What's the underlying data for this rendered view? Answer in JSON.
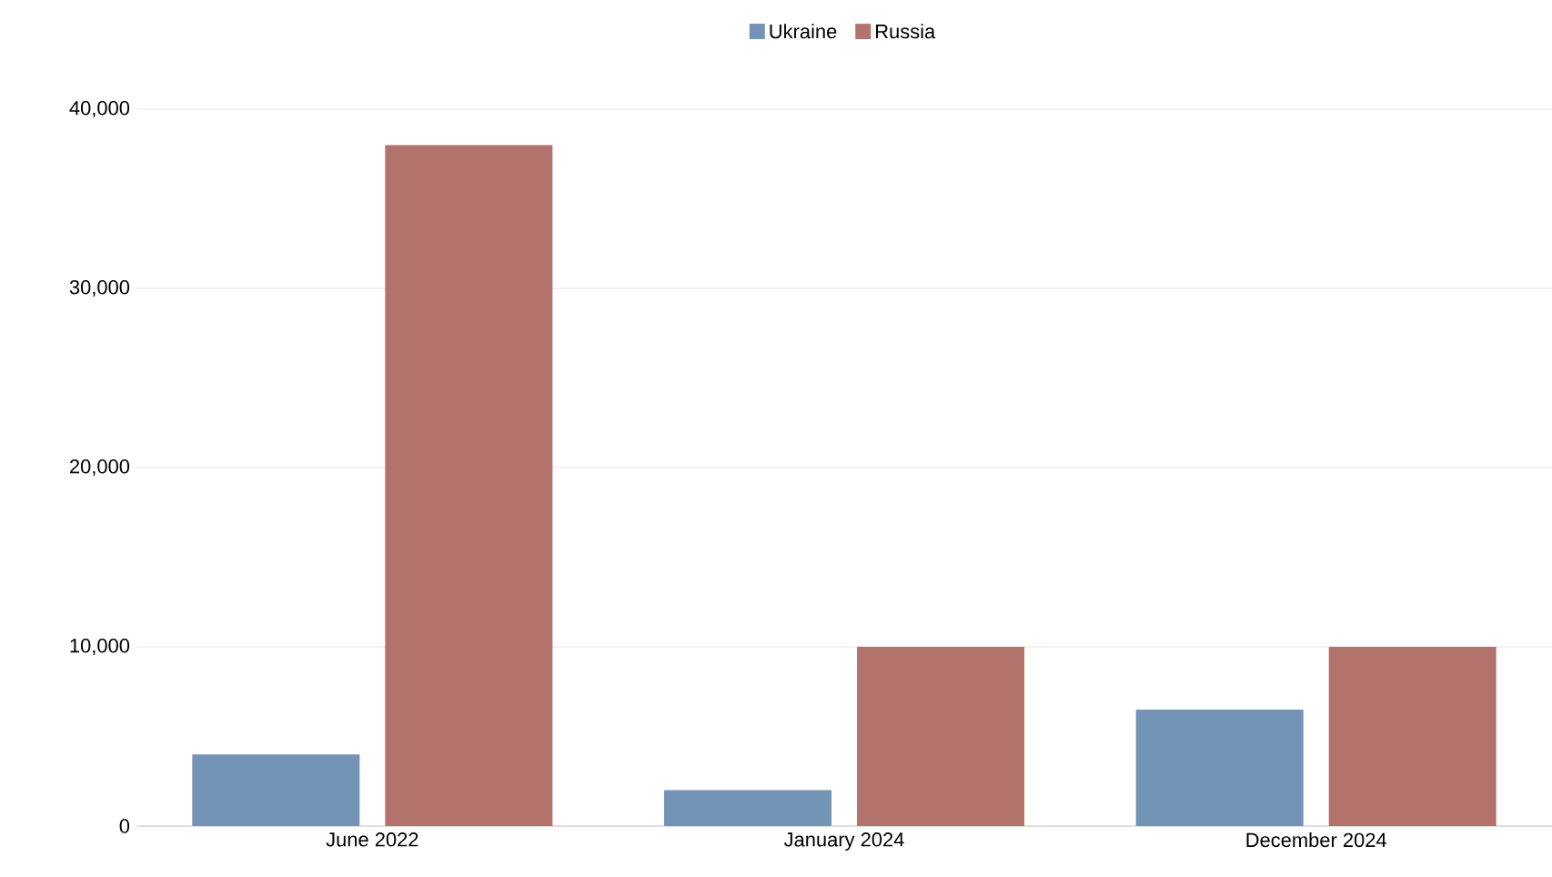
{
  "chart_data": {
    "type": "bar",
    "categories": [
      "June 2022",
      "January 2024",
      "December 2024"
    ],
    "series": [
      {
        "name": "Ukraine",
        "color": "#7393b7",
        "values": [
          4000,
          2000,
          6500
        ]
      },
      {
        "name": "Russia",
        "color": "#b3736d",
        "values": [
          38000,
          10000,
          10000
        ]
      }
    ],
    "ylim": [
      0,
      40000
    ],
    "yticks": [
      {
        "value": 0,
        "label": "0"
      },
      {
        "value": 10000,
        "label": "10,000"
      },
      {
        "value": 20000,
        "label": "20,000"
      },
      {
        "value": 30000,
        "label": "30,000"
      },
      {
        "value": 40000,
        "label": "40,000"
      }
    ],
    "grid": "y",
    "legend": "top"
  }
}
